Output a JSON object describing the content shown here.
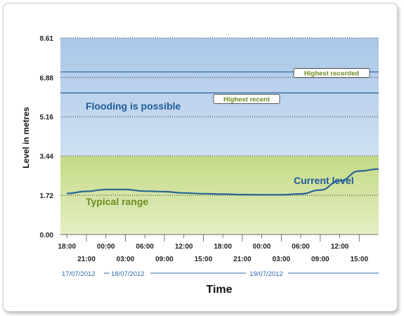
{
  "chart_data": {
    "type": "line",
    "ylabel": "Level in metres",
    "xlabel": "Time",
    "ylim": [
      0,
      8.61
    ],
    "y_ticks": [
      "0.00",
      "1.72",
      "3.44",
      "5.16",
      "6.88",
      "8.61"
    ],
    "x_ticks": [
      "18:00",
      "21:00",
      "00:00",
      "03:00",
      "06:00",
      "09:00",
      "12:00",
      "15:00",
      "18:00",
      "21:00",
      "00:00",
      "03:00",
      "06:00",
      "09:00",
      "12:00",
      "15:00"
    ],
    "dates": [
      "17/07/2012",
      "18/07/2012",
      "19/07/2012"
    ],
    "bands": [
      {
        "name": "Typical range",
        "from": 0,
        "to": 3.44,
        "color": "#d2e2a0"
      },
      {
        "name": "Flooding is possible",
        "from": 3.44,
        "to": 8.61,
        "color": "#b8d0ea"
      }
    ],
    "reference_lines": [
      {
        "name": "Highest recorded",
        "value": 7.12
      },
      {
        "name": "Highest recent",
        "value": 6.2
      }
    ],
    "series": [
      {
        "name": "Current level",
        "color": "#2a6496",
        "x": [
          0,
          3,
          6,
          9,
          12,
          15,
          18,
          21,
          24,
          27,
          30,
          33,
          36,
          39,
          42,
          45,
          48
        ],
        "values": [
          1.8,
          1.89,
          1.97,
          1.97,
          1.9,
          1.88,
          1.82,
          1.79,
          1.77,
          1.75,
          1.74,
          1.74,
          1.78,
          1.95,
          2.35,
          2.78,
          2.87
        ]
      }
    ],
    "x_range_hours": [
      -1,
      48
    ],
    "annotations": {
      "flooding": "Flooding is possible",
      "typical": "Typical range",
      "current": "Current level"
    }
  }
}
